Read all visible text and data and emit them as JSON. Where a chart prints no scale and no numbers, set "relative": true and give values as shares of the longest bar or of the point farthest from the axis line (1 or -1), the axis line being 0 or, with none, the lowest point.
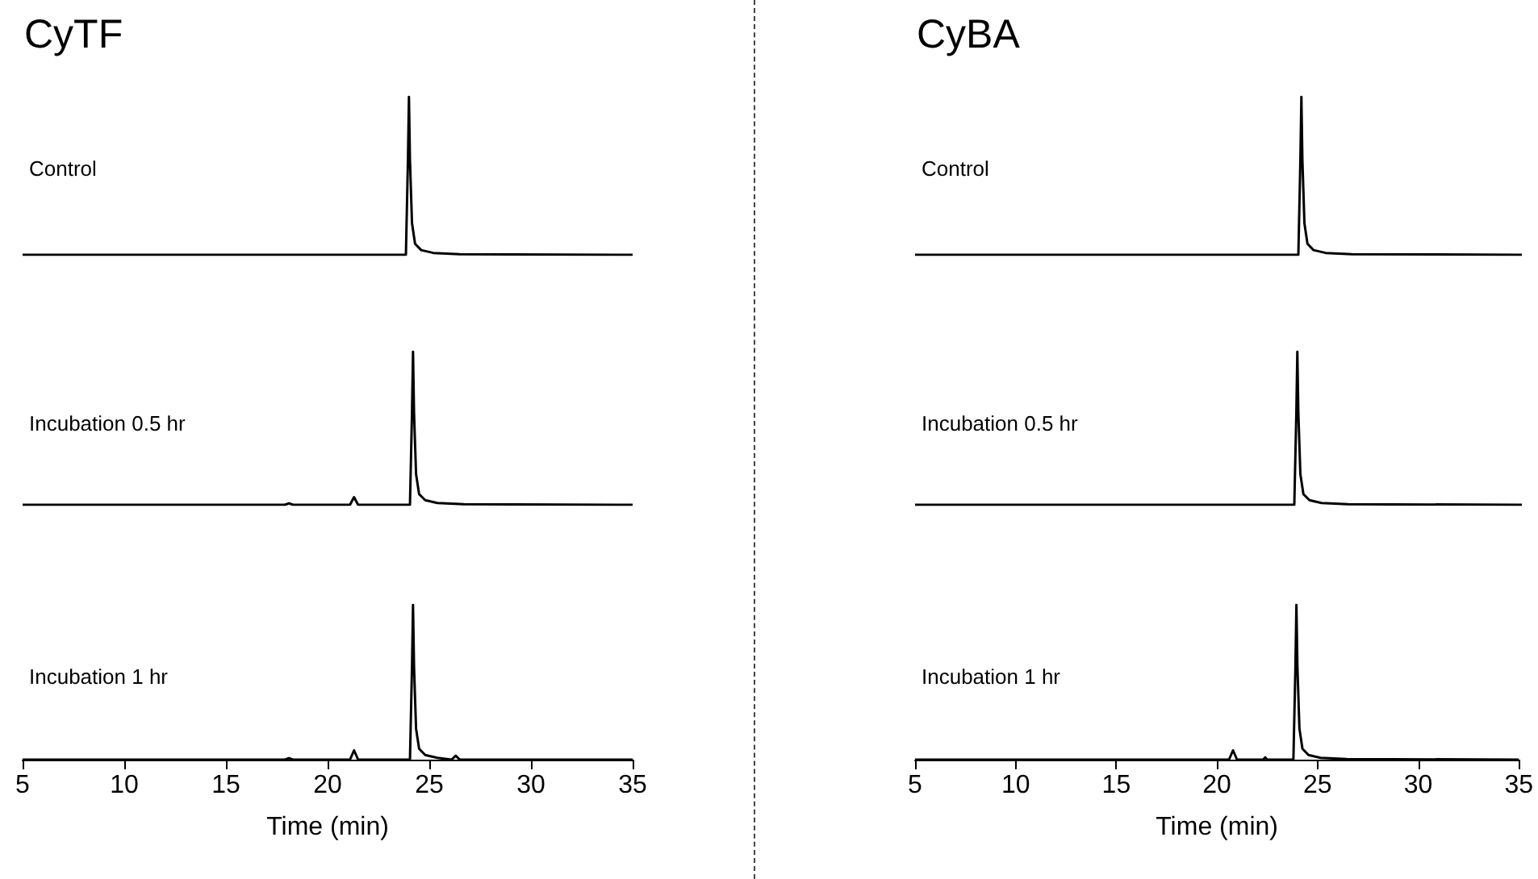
{
  "chart_data": [
    {
      "type": "line",
      "title": "CyTF",
      "annotations": [
        "Control"
      ],
      "relative": true,
      "xlim": [
        5,
        35
      ],
      "tick_labels": false,
      "marker": "none",
      "color": "#000000",
      "x": [
        5,
        18,
        21.2,
        23.85,
        23.95,
        24.0,
        24.05,
        24.15,
        24.3,
        24.6,
        25.2,
        26.5,
        35
      ],
      "values": [
        0,
        0,
        0,
        0,
        0.6,
        1,
        0.6,
        0.2,
        0.07,
        0.03,
        0.012,
        0.004,
        0
      ]
    },
    {
      "type": "line",
      "annotations": [
        "Incubation 0.5 hr"
      ],
      "relative": true,
      "xlim": [
        5,
        35
      ],
      "tick_labels": false,
      "marker": "none",
      "color": "#000000",
      "x": [
        5,
        17.9,
        18.1,
        18.3,
        21.1,
        21.3,
        21.5,
        24.05,
        24.15,
        24.2,
        24.25,
        24.35,
        24.5,
        24.8,
        25.4,
        26.7,
        35
      ],
      "values": [
        0,
        0,
        0.01,
        0,
        0,
        0.05,
        0,
        0,
        0.6,
        1,
        0.6,
        0.2,
        0.07,
        0.03,
        0.012,
        0.004,
        0
      ]
    },
    {
      "type": "line",
      "annotations": [
        "Incubation 1 hr"
      ],
      "relative": true,
      "xlim": [
        5,
        35
      ],
      "xticks": [
        5,
        10,
        15,
        20,
        25,
        30,
        35
      ],
      "xlabel": "Time (min)",
      "tick_labels": "x",
      "marker": "none",
      "color": "#000000",
      "x": [
        5,
        17.9,
        18.1,
        18.3,
        21.1,
        21.3,
        21.5,
        24.05,
        24.15,
        24.2,
        24.25,
        24.35,
        24.5,
        24.8,
        25.4,
        26.1,
        26.3,
        26.5,
        35
      ],
      "values": [
        0,
        0,
        0.01,
        0,
        0,
        0.06,
        0,
        0,
        0.6,
        1,
        0.6,
        0.2,
        0.07,
        0.03,
        0.012,
        0,
        0.025,
        0,
        0
      ]
    },
    {
      "type": "line",
      "title": "CyBA",
      "annotations": [
        "Control"
      ],
      "relative": true,
      "xlim": [
        5,
        35
      ],
      "tick_labels": false,
      "marker": "none",
      "color": "#000000",
      "x": [
        5,
        23.95,
        24.05,
        24.1,
        24.15,
        24.25,
        24.4,
        24.7,
        25.3,
        26.6,
        35
      ],
      "values": [
        0,
        0,
        0.6,
        1,
        0.6,
        0.2,
        0.07,
        0.03,
        0.012,
        0.004,
        0
      ]
    },
    {
      "type": "line",
      "annotations": [
        "Incubation 0.5 hr"
      ],
      "relative": true,
      "xlim": [
        5,
        35
      ],
      "tick_labels": false,
      "marker": "none",
      "color": "#000000",
      "x": [
        5,
        23.75,
        23.85,
        23.9,
        23.95,
        24.05,
        24.2,
        24.5,
        25.1,
        26.4,
        35
      ],
      "values": [
        0,
        0,
        0.6,
        1,
        0.6,
        0.2,
        0.07,
        0.03,
        0.012,
        0.004,
        0
      ]
    },
    {
      "type": "line",
      "annotations": [
        "Incubation 1 hr"
      ],
      "relative": true,
      "xlim": [
        5,
        35
      ],
      "xticks": [
        5,
        10,
        15,
        20,
        25,
        30,
        35
      ],
      "xlabel": "Time (min)",
      "tick_labels": "x",
      "marker": "none",
      "color": "#000000",
      "x": [
        5,
        20.6,
        20.8,
        21.0,
        22.3,
        22.4,
        22.5,
        23.8,
        23.9,
        23.95,
        24.0,
        24.1,
        24.25,
        24.55,
        25.15,
        26.45,
        35
      ],
      "values": [
        0,
        0,
        0.06,
        0,
        0,
        0.015,
        0,
        0,
        0.6,
        1,
        0.6,
        0.2,
        0.07,
        0.03,
        0.012,
        0.004,
        0
      ]
    }
  ]
}
